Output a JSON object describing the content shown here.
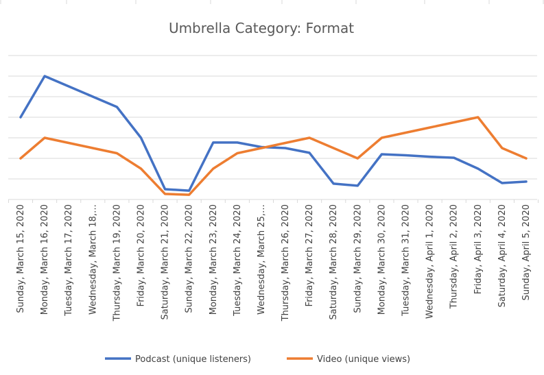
{
  "chart_data": {
    "type": "line",
    "title": "Umbrella Category: Format",
    "xlabel": "",
    "ylabel": "",
    "categories": [
      "Sunday, March 15, 2020",
      "Monday, March 16, 2020",
      "Tuesday, March 17, 2020",
      "Wednesday, March 18,…",
      "Thursday, March 19, 2020",
      "Friday, March 20, 2020",
      "Saturday, March 21, 2020",
      "Sunday, March 22, 2020",
      "Monday, March 23, 2020",
      "Tuesday, March 24, 2020",
      "Wednesday, March 25,…",
      "Thursday, March 26, 2020",
      "Friday, March 27, 2020",
      "Saturday, March 28, 2020",
      "Sunday, March 29, 2020",
      "Monday, March 30, 2020",
      "Tuesday, March 31, 2020",
      "Wednesday, April 1, 2020",
      "Thursday, April 2, 2020",
      "Friday, April 3, 2020",
      "Saturday, April 4, 2020",
      "Sunday, April 5, 2020"
    ],
    "ylim": [
      0,
      7
    ],
    "y_gridlines": 7,
    "grid": true,
    "y_axis_labels": false,
    "legend_position": "bottom",
    "series": [
      {
        "name": "Podcast (unique listeners)",
        "color": "#4472c4",
        "values": [
          4.0,
          6.0,
          5.5,
          5.0,
          4.5,
          3.0,
          0.5,
          0.43,
          2.77,
          2.77,
          2.55,
          2.5,
          2.27,
          0.77,
          0.67,
          2.2,
          2.15,
          2.08,
          2.03,
          1.5,
          0.8,
          0.87
        ]
      },
      {
        "name": "Video (unique views)",
        "color": "#ed7d31",
        "values": [
          2.0,
          3.0,
          2.75,
          2.5,
          2.25,
          1.5,
          0.27,
          0.23,
          1.5,
          2.25,
          2.5,
          2.75,
          3.0,
          2.5,
          2.0,
          3.0,
          3.25,
          3.5,
          3.75,
          4.0,
          2.5,
          2.0
        ]
      }
    ]
  }
}
